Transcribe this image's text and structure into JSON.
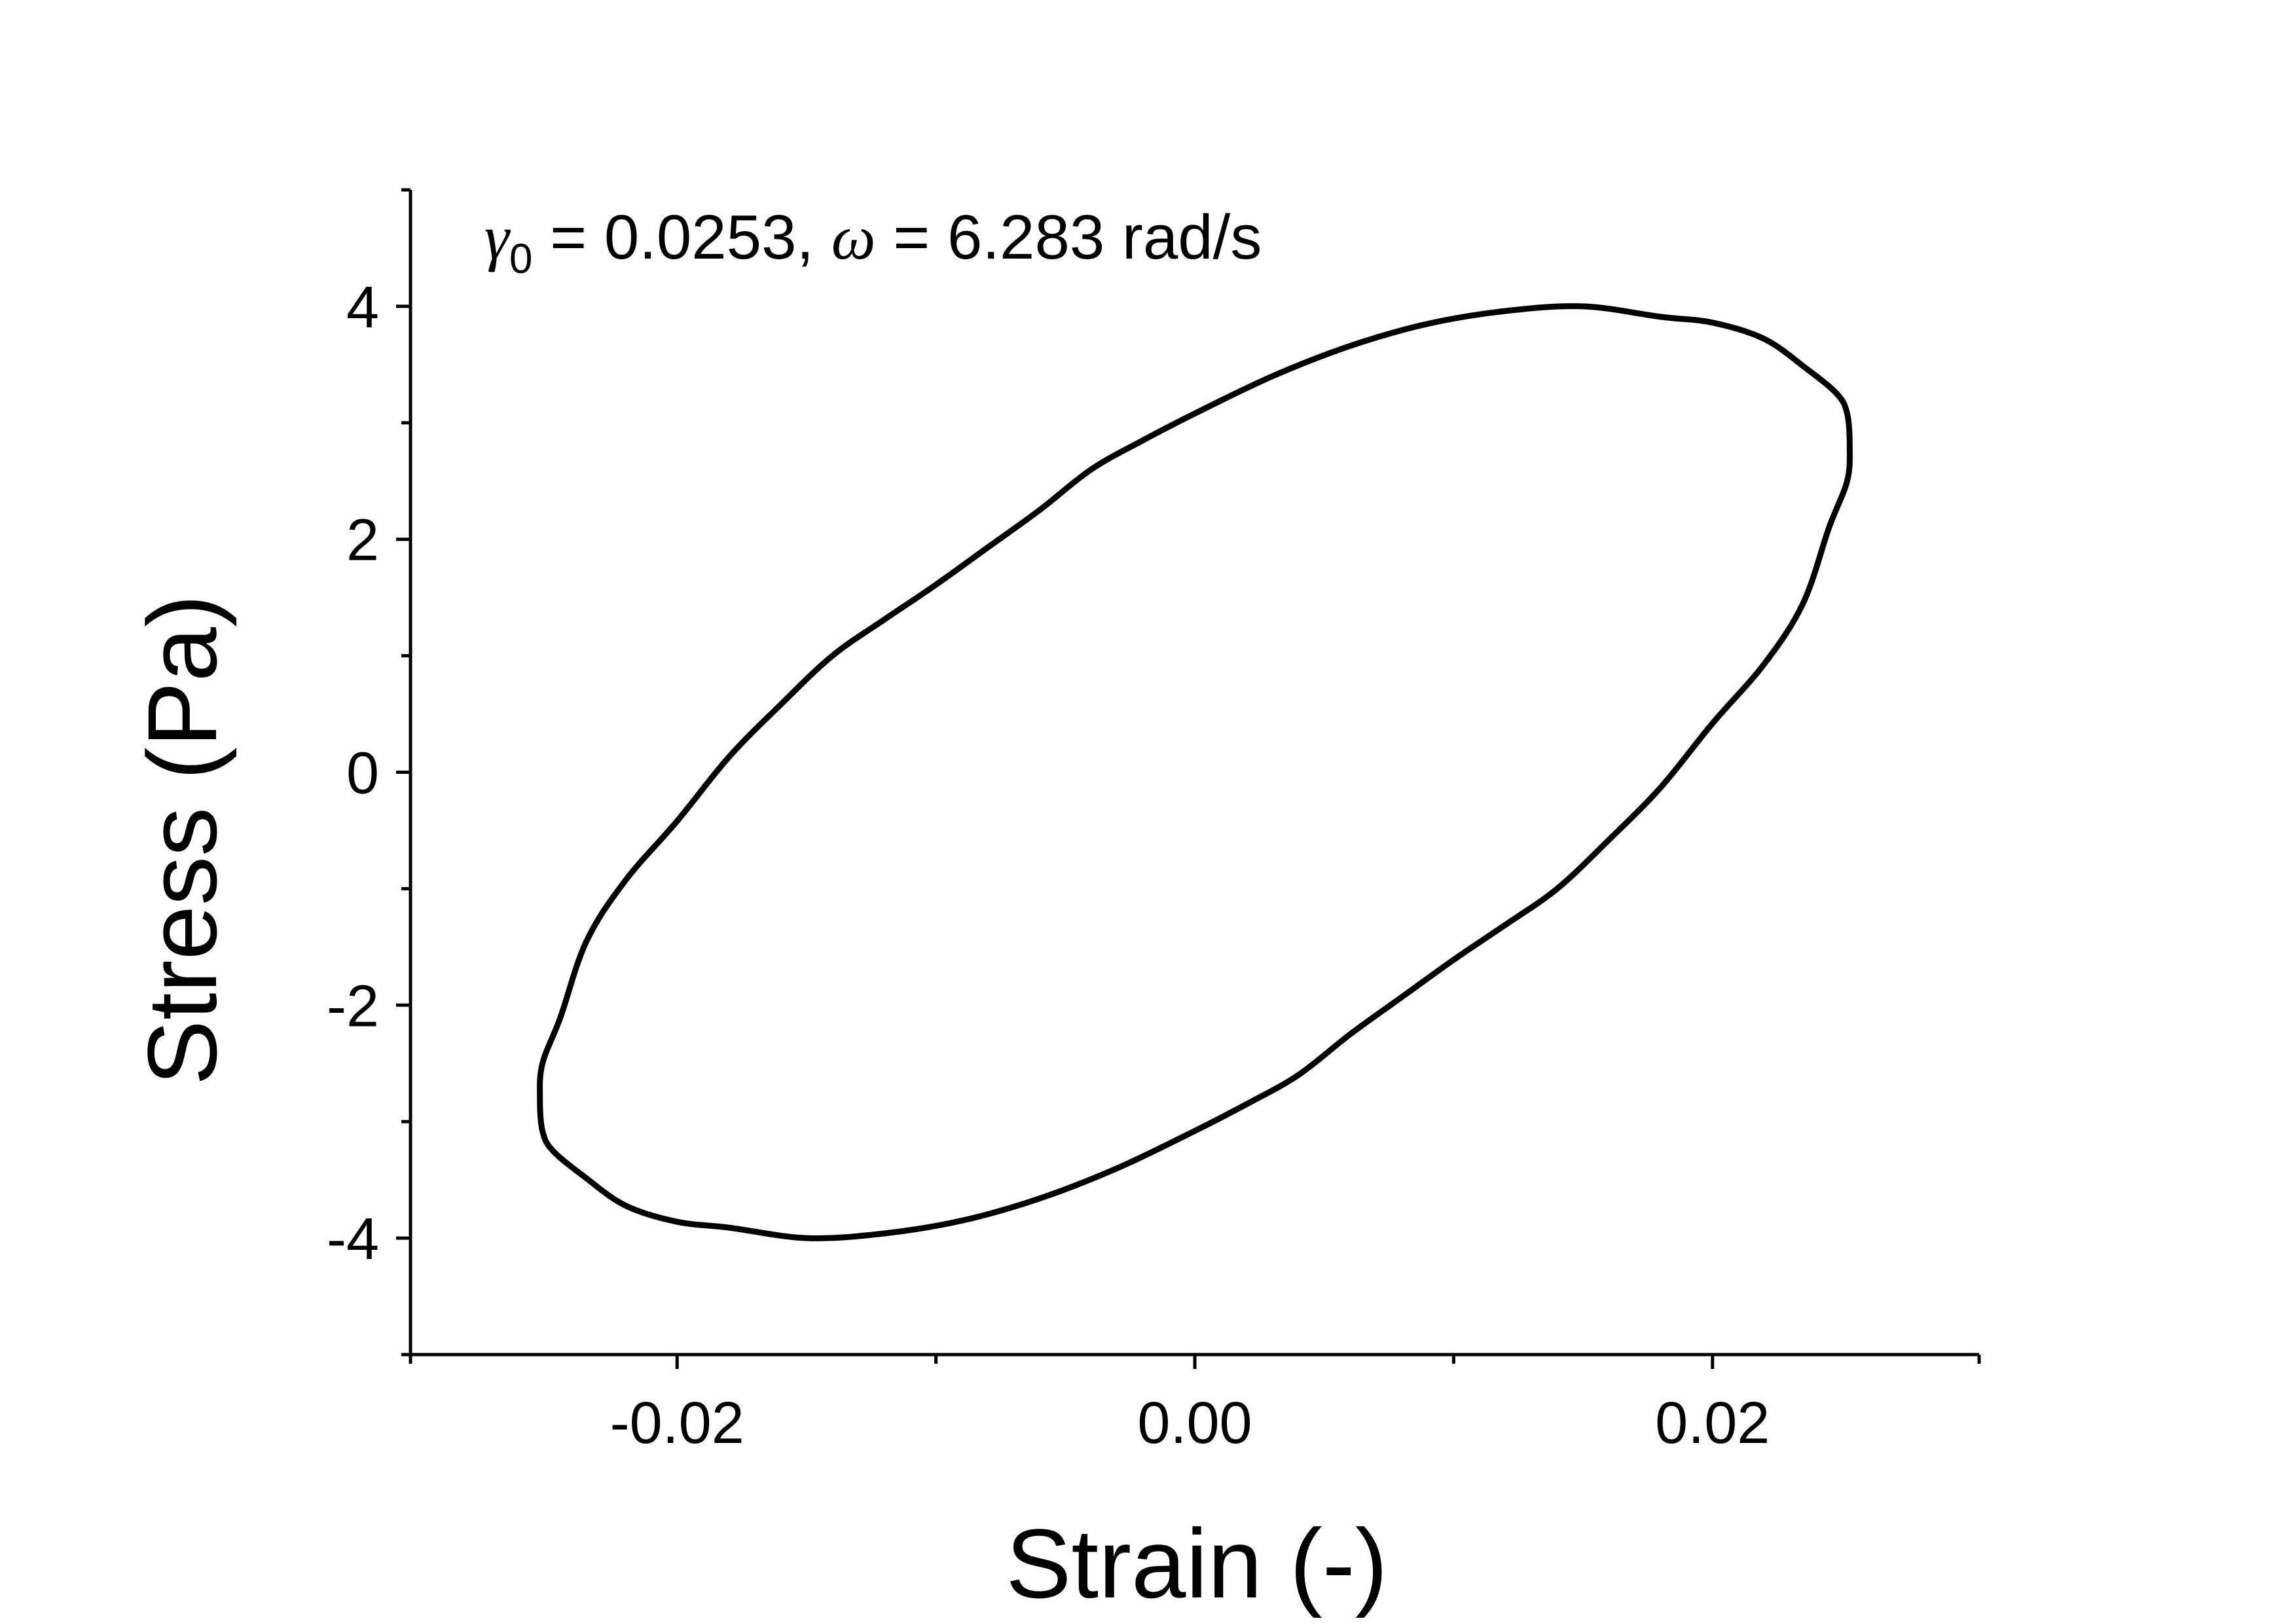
{
  "chart_data": {
    "type": "line",
    "title": "",
    "xlabel": "Strain (-)",
    "ylabel": "Stress (Pa)",
    "xlim": [
      -0.0303,
      0.0303
    ],
    "ylim": [
      -5,
      5
    ],
    "x_ticks": [
      -0.02,
      0.0,
      0.02
    ],
    "x_tick_labels": [
      "-0.02",
      "0.00",
      "0.02"
    ],
    "y_ticks": [
      -4,
      -2,
      0,
      2,
      4
    ],
    "y_tick_labels": [
      "-4",
      "-2",
      "0",
      "2",
      "4"
    ],
    "x_minor_ticks": [
      -0.0303,
      -0.01,
      0.01,
      0.0303
    ],
    "y_minor_ticks": [
      -5,
      -3,
      -1,
      1,
      3,
      5
    ],
    "grid": false,
    "legend": null,
    "annotation": {
      "gamma_symbol": "γ",
      "gamma_subscript": "0",
      "gamma_text": " = 0.0253, ",
      "omega_symbol": "ω",
      "omega_text": " = 6.283 rad/s"
    },
    "series": [
      {
        "color": "#000000",
        "closed": true,
        "points": [
          [
            0.0253,
            2.8
          ],
          [
            0.0252,
            3.08
          ],
          [
            0.0248,
            3.25
          ],
          [
            0.0236,
            3.47
          ],
          [
            0.022,
            3.72
          ],
          [
            0.02,
            3.86
          ],
          [
            0.018,
            3.91
          ],
          [
            0.015,
            4.0
          ],
          [
            0.012,
            3.96
          ],
          [
            0.009,
            3.85
          ],
          [
            0.006,
            3.66
          ],
          [
            0.003,
            3.4
          ],
          [
            0.0,
            3.08
          ],
          [
            -0.002,
            2.85
          ],
          [
            -0.004,
            2.6
          ],
          [
            -0.006,
            2.25
          ],
          [
            -0.008,
            1.93
          ],
          [
            -0.01,
            1.61
          ],
          [
            -0.012,
            1.31
          ],
          [
            -0.014,
            1.0
          ],
          [
            -0.016,
            0.58
          ],
          [
            -0.018,
            0.13
          ],
          [
            -0.02,
            -0.42
          ],
          [
            -0.022,
            -0.93
          ],
          [
            -0.0235,
            -1.45
          ],
          [
            -0.0245,
            -2.1
          ],
          [
            -0.0252,
            -2.5
          ],
          [
            -0.0253,
            -2.8
          ],
          [
            -0.0252,
            -3.08
          ],
          [
            -0.0248,
            -3.25
          ],
          [
            -0.0236,
            -3.47
          ],
          [
            -0.022,
            -3.72
          ],
          [
            -0.02,
            -3.86
          ],
          [
            -0.018,
            -3.91
          ],
          [
            -0.015,
            -4.0
          ],
          [
            -0.012,
            -3.96
          ],
          [
            -0.009,
            -3.85
          ],
          [
            -0.006,
            -3.66
          ],
          [
            -0.003,
            -3.4
          ],
          [
            0.0,
            -3.08
          ],
          [
            0.002,
            -2.85
          ],
          [
            0.004,
            -2.6
          ],
          [
            0.006,
            -2.25
          ],
          [
            0.008,
            -1.93
          ],
          [
            0.01,
            -1.61
          ],
          [
            0.012,
            -1.31
          ],
          [
            0.014,
            -1.0
          ],
          [
            0.016,
            -0.58
          ],
          [
            0.018,
            -0.13
          ],
          [
            0.02,
            0.42
          ],
          [
            0.022,
            0.93
          ],
          [
            0.0235,
            1.45
          ],
          [
            0.0245,
            2.1
          ],
          [
            0.0252,
            2.5
          ]
        ]
      }
    ]
  }
}
